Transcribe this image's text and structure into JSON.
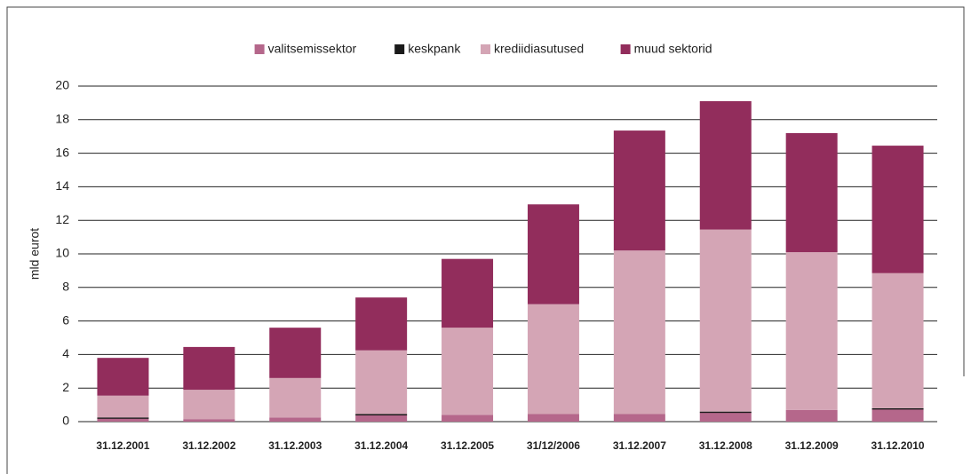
{
  "chart_data": {
    "type": "stacked_bar",
    "y_label": "mld eurot",
    "categories": [
      "31.12.2001",
      "31.12.2002",
      "31.12.2003",
      "31.12.2004",
      "31.12.2005",
      "31/12/2006",
      "31.12.2007",
      "31.12.2008",
      "31.12.2009",
      "31.12.2010"
    ],
    "series": [
      {
        "name": "valitsemissektor",
        "color": "#b5678b",
        "values": [
          0.2,
          0.15,
          0.25,
          0.4,
          0.4,
          0.45,
          0.45,
          0.55,
          0.7,
          0.75
        ]
      },
      {
        "name": "keskpank",
        "color": "#1a1a1a",
        "values": [
          0.05,
          0,
          0,
          0.05,
          0,
          0,
          0,
          0.05,
          0,
          0.05
        ]
      },
      {
        "name": "krediidiasutused",
        "color": "#d4a5b5",
        "values": [
          1.3,
          1.75,
          2.35,
          3.8,
          5.2,
          6.55,
          9.75,
          10.85,
          9.4,
          8.05
        ]
      },
      {
        "name": "muud sektorid",
        "color": "#922d5c",
        "values": [
          2.25,
          2.55,
          3.0,
          3.15,
          4.1,
          5.95,
          7.15,
          7.65,
          7.1,
          7.6
        ]
      }
    ],
    "ylim": [
      0,
      20
    ],
    "yticks": [
      0,
      2,
      4,
      6,
      8,
      10,
      12,
      14,
      16,
      18,
      20
    ],
    "grid": true,
    "legend": "top"
  }
}
